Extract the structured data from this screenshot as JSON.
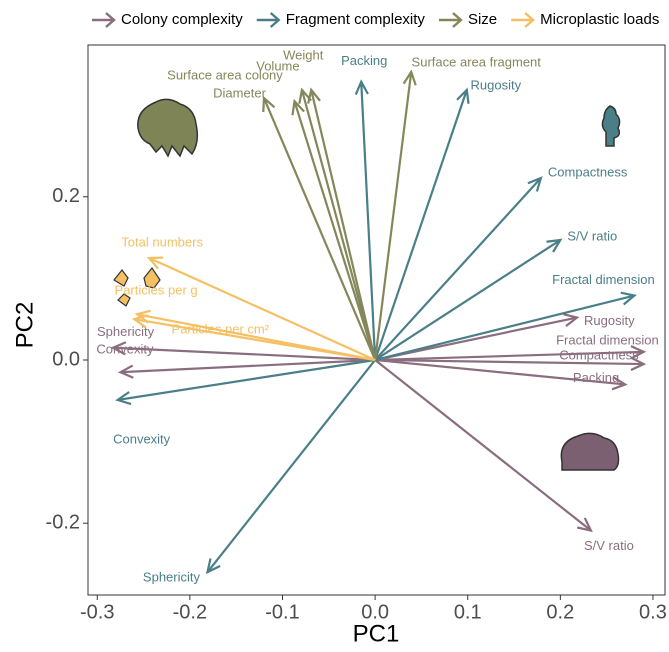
{
  "chart_data": {
    "type": "biplot",
    "x_label": "PC1",
    "y_label": "PC2",
    "xlim": [
      -0.31,
      0.313
    ],
    "ylim": [
      -0.288,
      0.386
    ],
    "xticks": [
      -0.3,
      -0.2,
      -0.1,
      {
        "value": 0,
        "label": "0.0"
      },
      0.1,
      0.2,
      0.3
    ],
    "yticks": [
      -0.2,
      {
        "value": 0,
        "label": "0.0"
      },
      0.2
    ],
    "grid": false,
    "legend": "top",
    "series": [
      {
        "name": "Colony complexity",
        "color": "#8a6e80",
        "labels": [
          "Sphericity",
          "Convexity",
          "Rugosity",
          "Fractal dimension",
          "Compactness",
          "Packing",
          "S/V ratio"
        ],
        "x": [
          -0.283,
          -0.275,
          0.218,
          0.29,
          0.29,
          0.27,
          0.233
        ],
        "values": [
          0.015,
          -0.015,
          0.052,
          0.01,
          -0.005,
          -0.03,
          -0.209
        ]
      },
      {
        "name": "Fragment complexity",
        "color": "#4a7f88",
        "labels": [
          "Packing",
          "Rugosity",
          "Compactness",
          "S/V ratio",
          "Fractal dimension",
          "Convexity",
          "Sphericity"
        ],
        "x": [
          -0.015,
          0.099,
          0.179,
          0.2,
          0.28,
          -0.278,
          -0.181
        ],
        "values": [
          0.341,
          0.331,
          0.223,
          0.147,
          0.079,
          -0.049,
          -0.26
        ]
      },
      {
        "name": "Size",
        "color": "#85865a",
        "labels": [
          "Surface area colony",
          "Diameter",
          "Volume",
          "Weight",
          "Surface area fragment"
        ],
        "x": [
          -0.12,
          -0.087,
          -0.079,
          -0.069,
          0.039
        ],
        "values": [
          0.321,
          0.317,
          0.331,
          0.331,
          0.353
        ]
      },
      {
        "name": "Microplastic loads",
        "color": "#f5c063",
        "labels": [
          "Total numbers",
          "Particles per g",
          "Particles per cm²"
        ],
        "x": [
          -0.244,
          -0.257,
          -0.26
        ],
        "values": [
          0.125,
          0.056,
          0.05
        ]
      }
    ]
  }
}
